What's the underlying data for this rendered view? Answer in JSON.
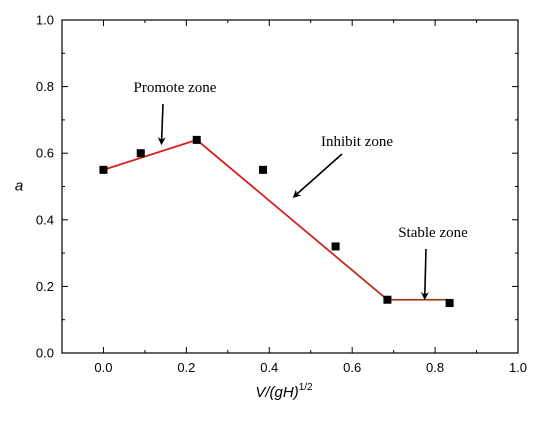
{
  "chart_data": {
    "type": "scatter",
    "title": "",
    "xlabel_main": "V/(gH)",
    "xlabel_sup": "1/2",
    "ylabel": "a",
    "xlim": [
      -0.1,
      1.0
    ],
    "ylim": [
      0.0,
      1.0
    ],
    "x_ticks": [
      "0.0",
      "0.2",
      "0.4",
      "0.6",
      "0.8",
      "1.0"
    ],
    "y_ticks": [
      "0.0",
      "0.2",
      "0.4",
      "0.6",
      "0.8",
      "1.0"
    ],
    "grid": false,
    "series": [
      {
        "kind": "scatter",
        "marker": "square",
        "color": "#000000",
        "x": [
          0.0,
          0.09,
          0.225,
          0.385,
          0.56,
          0.685,
          0.835
        ],
        "y": [
          0.55,
          0.6,
          0.64,
          0.55,
          0.32,
          0.16,
          0.15
        ]
      },
      {
        "kind": "line",
        "color": "#d81e1e",
        "color_end": "#8a4b20",
        "x": [
          0.0,
          0.225,
          0.685,
          0.84
        ],
        "y": [
          0.55,
          0.64,
          0.16,
          0.16
        ]
      }
    ],
    "annotations": [
      {
        "text": "Promote zone",
        "arrow_to": [
          0.14,
          0.63
        ]
      },
      {
        "text": "Inhibit zone",
        "arrow_to": [
          0.46,
          0.47
        ]
      },
      {
        "text": "Stable zone",
        "arrow_to": [
          0.775,
          0.165
        ]
      }
    ]
  }
}
